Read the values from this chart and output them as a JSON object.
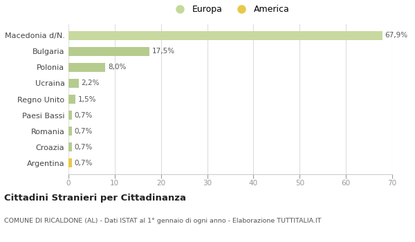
{
  "categories": [
    "Argentina",
    "Croazia",
    "Romania",
    "Paesi Bassi",
    "Regno Unito",
    "Ucraina",
    "Polonia",
    "Bulgaria",
    "Macedonia d/N."
  ],
  "values": [
    0.7,
    0.7,
    0.7,
    0.7,
    1.5,
    2.2,
    8.0,
    17.5,
    67.9
  ],
  "labels": [
    "0,7%",
    "0,7%",
    "0,7%",
    "0,7%",
    "1,5%",
    "2,2%",
    "8,0%",
    "17,5%",
    "67,9%"
  ],
  "colors": [
    "#e8c84a",
    "#b5cc8e",
    "#b5cc8e",
    "#b5cc8e",
    "#b5cc8e",
    "#b5cc8e",
    "#b5cc8e",
    "#b5cc8e",
    "#c8d9a0"
  ],
  "europa_color": "#c5d99a",
  "america_color": "#e8c84a",
  "xlim": [
    0,
    70
  ],
  "xticks": [
    0,
    10,
    20,
    30,
    40,
    50,
    60,
    70
  ],
  "title": "Cittadini Stranieri per Cittadinanza",
  "subtitle": "COMUNE DI RICALDONE (AL) - Dati ISTAT al 1° gennaio di ogni anno - Elaborazione TUTTITALIA.IT",
  "background_color": "#ffffff",
  "grid_color": "#dddddd",
  "bar_height": 0.55
}
